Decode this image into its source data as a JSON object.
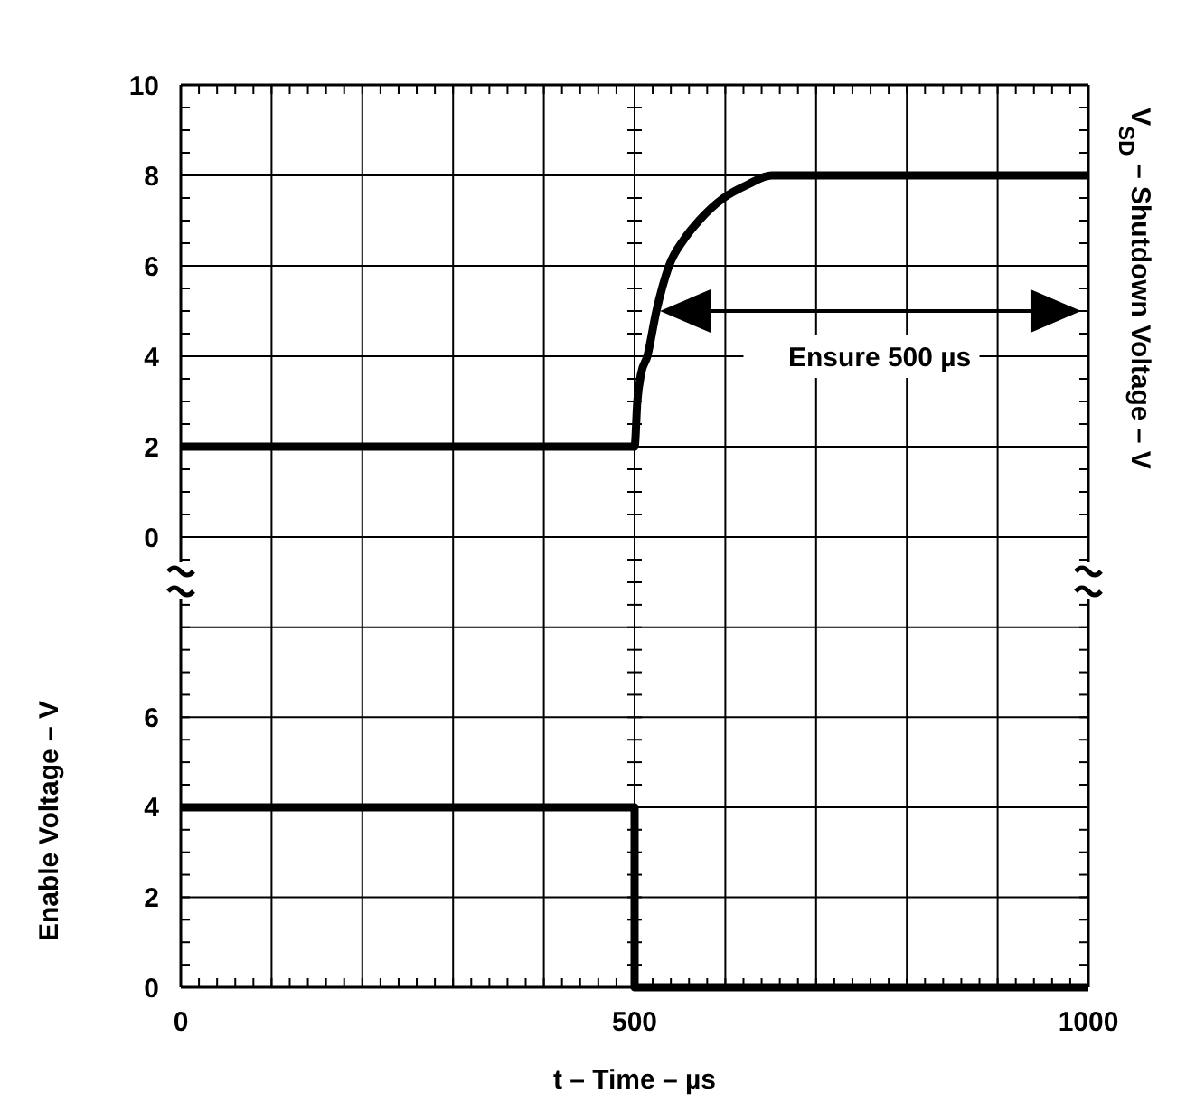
{
  "chart_data": [
    {
      "type": "line",
      "ylabel": "V$_{SD}$ – Shutdown Voltage – V",
      "annotations": [
        "Ensure 500 µs"
      ],
      "xlim": [
        0,
        1000
      ],
      "xticks": [
        {
          "value": 0,
          "label": null
        },
        {
          "value": 100,
          "label": null
        },
        {
          "value": 200,
          "label": null
        },
        {
          "value": 300,
          "label": null
        },
        {
          "value": 400,
          "label": null
        },
        {
          "value": 500,
          "label": null
        },
        {
          "value": 600,
          "label": null
        },
        {
          "value": 700,
          "label": null
        },
        {
          "value": 800,
          "label": null
        },
        {
          "value": 900,
          "label": null
        },
        {
          "value": 1000,
          "label": null
        }
      ],
      "ylim": [
        -1,
        10
      ],
      "yticks": [
        0,
        2,
        4,
        6,
        8,
        10
      ],
      "tick_labels": "y",
      "grid": true,
      "marker": "none",
      "line_style": "solid",
      "series": [
        {
          "color": "#000000",
          "x": [
            0,
            500,
            503,
            507,
            514,
            524,
            538,
            555,
            571,
            598,
            625,
            651,
            1000
          ],
          "values": [
            2,
            2,
            3,
            3.6,
            4,
            5,
            6,
            6.6,
            7,
            7.5,
            7.8,
            8,
            8
          ]
        }
      ]
    },
    {
      "type": "line",
      "ylabel": "Enable Voltage – V",
      "xlabel": "t – Time – µs",
      "xlim": [
        0,
        1000
      ],
      "xticks": [
        {
          "value": 0,
          "label": "0"
        },
        {
          "value": 100,
          "label": null
        },
        {
          "value": 200,
          "label": null
        },
        {
          "value": 300,
          "label": null
        },
        {
          "value": 400,
          "label": null
        },
        {
          "value": 500,
          "label": "500"
        },
        {
          "value": 600,
          "label": null
        },
        {
          "value": 700,
          "label": null
        },
        {
          "value": 800,
          "label": null
        },
        {
          "value": 900,
          "label": null
        },
        {
          "value": 1000,
          "label": "1000"
        }
      ],
      "ylim": [
        0,
        9
      ],
      "yticks": [
        0,
        2,
        4,
        6,
        {
          "value": 8,
          "label": null
        }
      ],
      "grid": true,
      "marker": "none",
      "line_style": "solid",
      "series": [
        {
          "color": "#000000",
          "x": [
            0,
            500,
            500,
            1000
          ],
          "values": [
            4,
            4,
            0,
            0
          ]
        }
      ]
    }
  ]
}
